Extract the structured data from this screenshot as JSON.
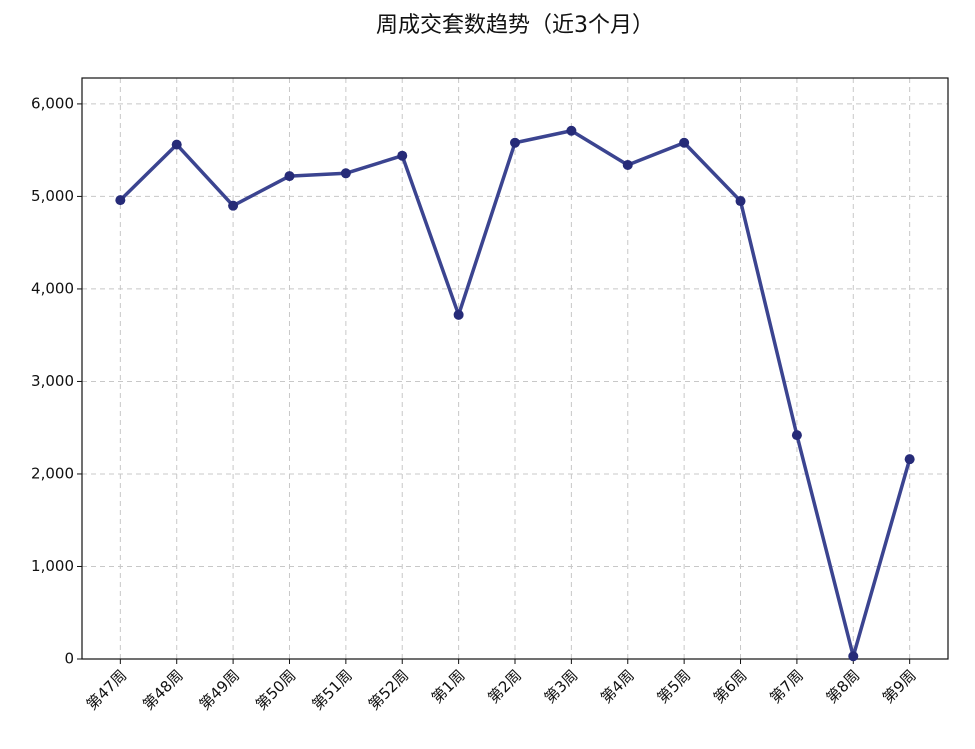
{
  "chart_data": {
    "type": "line",
    "title": "周成交套数趋势（近3个月）",
    "categories": [
      "第47周",
      "第48周",
      "第49周",
      "第50周",
      "第51周",
      "第52周",
      "第1周",
      "第2周",
      "第3周",
      "第4周",
      "第5周",
      "第6周",
      "第7周",
      "第8周",
      "第9周"
    ],
    "values": [
      4960,
      5560,
      4900,
      5220,
      5250,
      5440,
      3720,
      5580,
      5710,
      5340,
      5580,
      4950,
      2420,
      30,
      2160
    ],
    "color": "#3b4490",
    "marker_color": "#262b78",
    "ylim": [
      0,
      6280
    ],
    "yticks": [
      0,
      {
        "value": 1000,
        "label": "1,000"
      },
      {
        "value": 2000,
        "label": "2,000"
      },
      {
        "value": 3000,
        "label": "3,000"
      },
      {
        "value": 4000,
        "label": "4,000"
      },
      {
        "value": 5000,
        "label": "5,000"
      },
      {
        "value": 6000,
        "label": "6,000"
      }
    ],
    "grid": true
  }
}
